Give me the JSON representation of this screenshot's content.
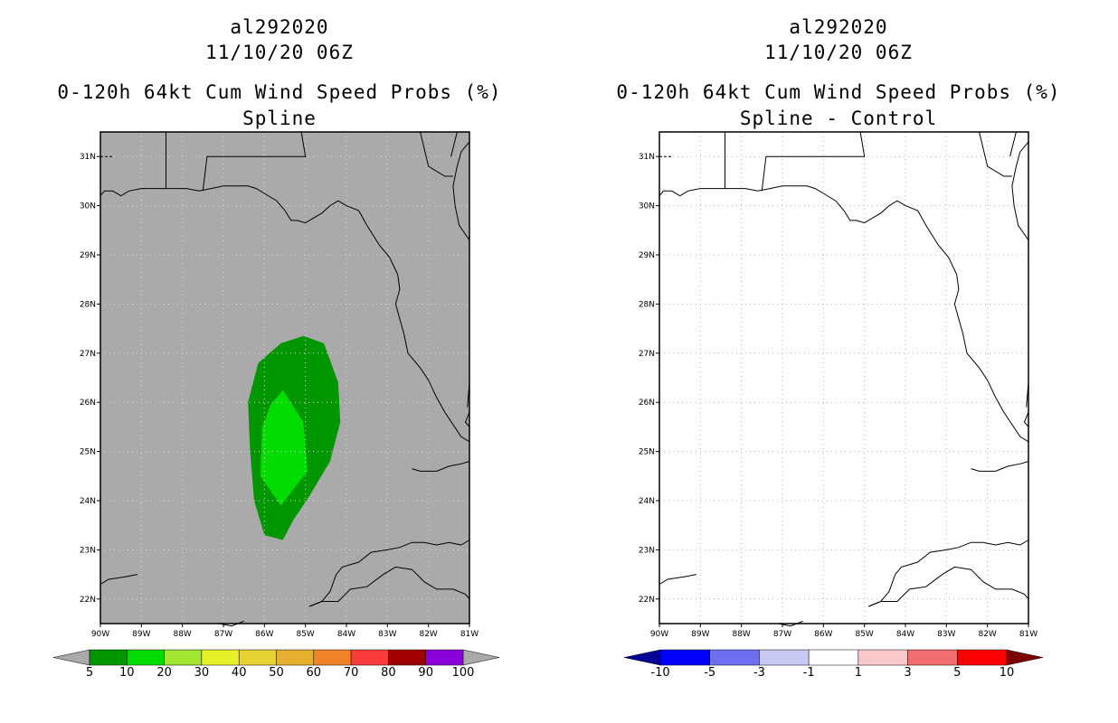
{
  "left": {
    "title": "al292020",
    "datetime": "11/10/20 06Z",
    "product": "0-120h 64kt Cum Wind Speed Probs (%)",
    "subtitle": "Spline"
  },
  "right": {
    "title": "al292020",
    "datetime": "11/10/20 06Z",
    "product": "0-120h 64kt Cum Wind Speed Probs (%)",
    "subtitle": "Spline - Control"
  },
  "chart_data": [
    {
      "type": "heatmap",
      "title": "0-120h 64kt Cum Wind Speed Probs (%)",
      "subtitle": "Spline",
      "storm": "al292020",
      "valid": "11/10/20 06Z",
      "xlim": [
        -90,
        -81
      ],
      "ylim": [
        21.5,
        31.5
      ],
      "x_ticks": [
        "90W",
        "89W",
        "88W",
        "87W",
        "86W",
        "85W",
        "84W",
        "83W",
        "82W",
        "81W"
      ],
      "y_ticks": [
        "22N",
        "23N",
        "24N",
        "25N",
        "26N",
        "27N",
        "28N",
        "29N",
        "30N",
        "31N"
      ],
      "background_color": "#aaaaaa",
      "contours": [
        {
          "level": "5-10",
          "color": "#009600",
          "lonlat": [
            [
              -85.05,
              27.35
            ],
            [
              -84.55,
              27.2
            ],
            [
              -84.2,
              26.4
            ],
            [
              -84.15,
              25.6
            ],
            [
              -84.4,
              24.8
            ],
            [
              -84.9,
              24.1
            ],
            [
              -85.3,
              23.6
            ],
            [
              -85.55,
              23.2
            ],
            [
              -86.0,
              23.3
            ],
            [
              -86.25,
              24.0
            ],
            [
              -86.35,
              25.0
            ],
            [
              -86.4,
              26.0
            ],
            [
              -86.15,
              26.8
            ],
            [
              -85.6,
              27.2
            ]
          ]
        },
        {
          "level": "10-20",
          "color": "#00dc00",
          "lonlat": [
            [
              -85.55,
              26.25
            ],
            [
              -85.05,
              25.6
            ],
            [
              -84.95,
              24.6
            ],
            [
              -85.6,
              23.9
            ],
            [
              -86.1,
              24.5
            ],
            [
              -86.05,
              25.5
            ],
            [
              -85.85,
              25.95
            ]
          ]
        }
      ],
      "colorbar": {
        "labels": [
          "5",
          "10",
          "20",
          "30",
          "40",
          "50",
          "60",
          "70",
          "80",
          "90",
          "100"
        ],
        "colors": [
          "#009600",
          "#00dc00",
          "#a0e632",
          "#e6f028",
          "#e6d232",
          "#e6af2d",
          "#f08228",
          "#fa3c3c",
          "#a00000",
          "#8c00dc"
        ],
        "under_color": "#aaaaaa",
        "over_color": "#aaaaaa"
      }
    },
    {
      "type": "heatmap",
      "title": "0-120h 64kt Cum Wind Speed Probs (%)",
      "subtitle": "Spline - Control",
      "storm": "al292020",
      "valid": "11/10/20 06Z",
      "xlim": [
        -90,
        -81
      ],
      "ylim": [
        21.5,
        31.5
      ],
      "x_ticks": [
        "90W",
        "89W",
        "88W",
        "87W",
        "86W",
        "85W",
        "84W",
        "83W",
        "82W",
        "81W"
      ],
      "y_ticks": [
        "22N",
        "23N",
        "24N",
        "25N",
        "26N",
        "27N",
        "28N",
        "29N",
        "30N",
        "31N"
      ],
      "background_color": "#ffffff",
      "contours": [],
      "colorbar": {
        "labels": [
          "-10",
          "-5",
          "-3",
          "-1",
          "1",
          "3",
          "5",
          "10"
        ],
        "colors": [
          "#0000ff",
          "#6e6ef0",
          "#c8c8f5",
          "#ffffff",
          "#fac8c8",
          "#f06e6e",
          "#ff0000"
        ],
        "under_color": "#000096",
        "over_color": "#7d0000"
      }
    }
  ]
}
